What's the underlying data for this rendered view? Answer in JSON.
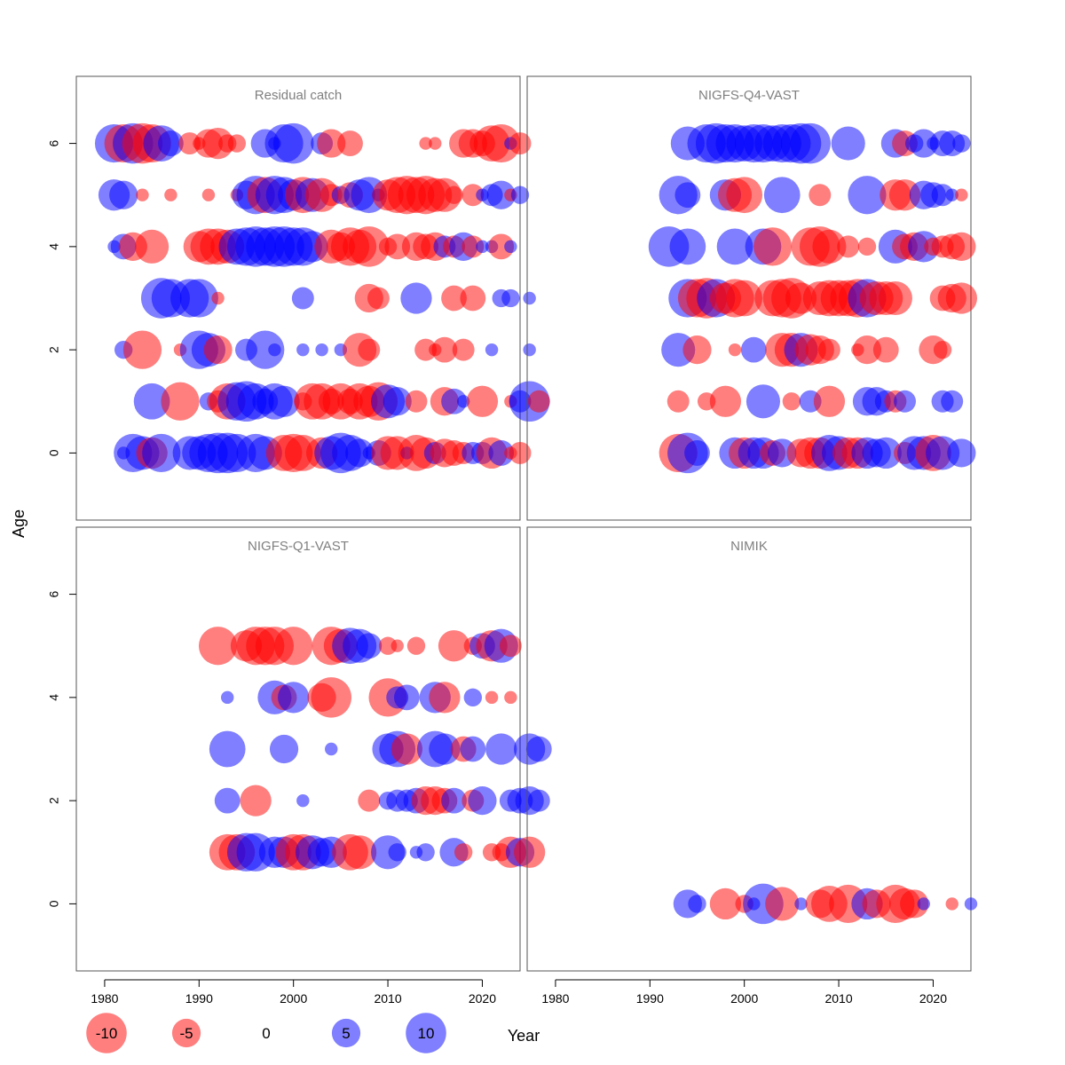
{
  "colors": {
    "negative": "#ff0000",
    "positive": "#0000ff",
    "panel_title": "#808080",
    "axis": "#000000"
  },
  "chart_data": {
    "type": "scatter",
    "subtype": "bubble",
    "ylabel": "Age",
    "xlabel": "Year",
    "xlim": [
      1977,
      2024
    ],
    "ylim": [
      -1.3,
      7.3
    ],
    "xticks": [
      1980,
      1990,
      2000,
      2010,
      2020
    ],
    "yticks": [
      0,
      2,
      4,
      6
    ],
    "legend": {
      "placement": "bottom",
      "entries": [
        {
          "value": -10,
          "label": "-10"
        },
        {
          "value": -5,
          "label": "-5"
        },
        {
          "value": 0,
          "label": "0"
        },
        {
          "value": 5,
          "label": "5"
        },
        {
          "value": 10,
          "label": "10"
        }
      ]
    },
    "panels": [
      {
        "title": "Residual catch",
        "ages": [
          {
            "age": 6,
            "first_year": 1981,
            "residuals": [
              9,
              -9,
              10,
              -10,
              -9,
              8,
              4,
              0,
              -3,
              -1,
              -5,
              -6,
              -2,
              -2,
              0,
              0,
              5,
              1,
              9,
              10,
              0,
              0,
              3,
              -5,
              0,
              -4,
              0,
              0,
              0,
              0,
              0,
              0,
              0,
              -1,
              -1,
              0,
              0,
              -5,
              -5,
              -4,
              -8,
              -9,
              1,
              -3
            ]
          },
          {
            "age": 5,
            "first_year": 1981,
            "residuals": [
              6,
              5,
              0,
              -1,
              0,
              0,
              -1,
              0,
              0,
              0,
              -1,
              0,
              0,
              -1,
              5,
              9,
              -8,
              9,
              8,
              6,
              -8,
              7,
              -7,
              -3,
              2,
              -4,
              6,
              8,
              1,
              -6,
              -8,
              -9,
              -8,
              -9,
              -7,
              -7,
              -2,
              0,
              -3,
              1,
              3,
              5,
              -1,
              2
            ]
          },
          {
            "age": 4,
            "first_year": 1981,
            "residuals": [
              1,
              4,
              -5,
              0,
              -7,
              0,
              0,
              0,
              0,
              -6,
              -8,
              -8,
              -7,
              8,
              9,
              10,
              9,
              10,
              10,
              9,
              9,
              6,
              0,
              -7,
              -5,
              -9,
              -7,
              -10,
              0,
              -2,
              -4,
              0,
              -5,
              -4,
              -5,
              3,
              -3,
              5,
              -3,
              1,
              1,
              -4,
              1
            ]
          },
          {
            "age": 3,
            "first_year": 1982,
            "residuals": [
              0,
              0,
              0,
              0,
              10,
              9,
              0,
              9,
              9,
              0,
              -1,
              0,
              0,
              0,
              0,
              0,
              0,
              0,
              0,
              3,
              0,
              0,
              0,
              0,
              0,
              0,
              -5,
              -3,
              0,
              0,
              0,
              6,
              0,
              0,
              0,
              -4,
              0,
              -4,
              0,
              0,
              2,
              2,
              0,
              1
            ]
          },
          {
            "age": 2,
            "first_year": 1982,
            "residuals": [
              2,
              0,
              -9,
              0,
              0,
              0,
              -1,
              0,
              9,
              7,
              -5,
              0,
              0,
              3,
              0,
              9,
              1,
              0,
              0,
              1,
              0,
              1,
              0,
              1,
              0,
              -7,
              -3,
              0,
              0,
              0,
              0,
              0,
              -3,
              -1,
              -4,
              0,
              -3,
              0,
              0,
              1,
              0,
              0,
              0,
              1
            ]
          },
          {
            "age": 1,
            "first_year": 1983,
            "residuals": [
              0,
              0,
              8,
              0,
              0,
              -9,
              0,
              0,
              2,
              -3,
              -8,
              9,
              10,
              8,
              4,
              8,
              6,
              0,
              -2,
              -8,
              -8,
              -4,
              -8,
              -4,
              -8,
              -6,
              -9,
              7,
              5,
              0,
              -3,
              0,
              0,
              -5,
              4,
              1,
              0,
              -6,
              0,
              0,
              -1,
              3,
              10,
              -3
            ]
          },
          {
            "age": 0,
            "first_year": 1981,
            "residuals": [
              0,
              1,
              9,
              7,
              -6,
              9,
              0,
              0,
              7,
              7,
              9,
              10,
              10,
              9,
              0,
              9,
              7,
              0,
              -8,
              -9,
              -8,
              0,
              -6,
              7,
              10,
              8,
              5,
              1,
              4,
              -7,
              -7,
              1,
              -8,
              -6,
              3,
              -5,
              -4,
              -3,
              3,
              3,
              -6,
              4,
              -1,
              -3
            ]
          }
        ]
      },
      {
        "title": "NIGFS-Q4-VAST",
        "ages": [
          {
            "age": 6,
            "first_year": 1992,
            "residuals": [
              0,
              0,
              7,
              0,
              9,
              10,
              9,
              9,
              8,
              9,
              9,
              8,
              9,
              9,
              10,
              10,
              0,
              0,
              0,
              7,
              0,
              0,
              0,
              0,
              5,
              -4,
              2,
              5,
              1,
              4,
              4,
              2
            ]
          },
          {
            "age": 5,
            "first_year": 1992,
            "residuals": [
              0,
              9,
              4,
              0,
              0,
              0,
              6,
              -7,
              -8,
              0,
              0,
              0,
              8,
              0,
              0,
              0,
              -3,
              0,
              0,
              0,
              0,
              9,
              0,
              0,
              -6,
              -6,
              0,
              5,
              4,
              3,
              1,
              -1
            ]
          },
          {
            "age": 4,
            "first_year": 1992,
            "residuals": [
              10,
              0,
              8,
              0,
              0,
              0,
              0,
              8,
              0,
              0,
              8,
              -9,
              0,
              0,
              0,
              -9,
              -10,
              -7,
              0,
              -3,
              0,
              -2,
              0,
              0,
              7,
              -4,
              -5,
              6,
              -2,
              -3,
              -4,
              -5
            ]
          },
          {
            "age": 3,
            "first_year": 1992,
            "residuals": [
              0,
              0,
              9,
              -9,
              -10,
              9,
              -6,
              -9,
              -8,
              0,
              0,
              -8,
              -9,
              -10,
              -6,
              0,
              -7,
              -8,
              -8,
              -8,
              -9,
              9,
              -7,
              -7,
              -7,
              0,
              0,
              0,
              0,
              -4,
              -5,
              -6
            ]
          },
          {
            "age": 2,
            "first_year": 1992,
            "residuals": [
              0,
              7,
              0,
              -5,
              0,
              0,
              0,
              -1,
              0,
              4,
              0,
              0,
              -7,
              -7,
              7,
              -6,
              -5,
              -3,
              0,
              0,
              -1,
              -5,
              0,
              -4,
              0,
              0,
              0,
              0,
              -5,
              -2
            ]
          },
          {
            "age": 1,
            "first_year": 1993,
            "residuals": [
              -3,
              0,
              0,
              -2,
              0,
              -6,
              0,
              0,
              0,
              7,
              0,
              0,
              -2,
              0,
              3,
              0,
              -6,
              0,
              0,
              0,
              5,
              5,
              3,
              -3,
              3,
              0,
              0,
              0,
              3,
              3
            ]
          },
          {
            "age": 0,
            "first_year": 1993,
            "residuals": [
              -9,
              10,
              4,
              0,
              0,
              0,
              6,
              -6,
              6,
              6,
              -4,
              5,
              0,
              -5,
              -6,
              -6,
              8,
              7,
              -6,
              -6,
              6,
              5,
              6,
              0,
              -3,
              7,
              7,
              -8,
              7,
              0,
              5
            ]
          }
        ]
      },
      {
        "title": "NIGFS-Q1-VAST",
        "ages": [
          {
            "age": 5,
            "first_year": 1992,
            "residuals": [
              -9,
              0,
              0,
              -6,
              -9,
              -9,
              -9,
              0,
              -9,
              0,
              0,
              0,
              -9,
              -7,
              8,
              7,
              4,
              0,
              -2,
              -1,
              0,
              -2,
              0,
              0,
              0,
              -6,
              0,
              -2,
              4,
              -6,
              7,
              -3
            ]
          },
          {
            "age": 4,
            "first_year": 1993,
            "residuals": [
              1,
              0,
              0,
              0,
              0,
              7,
              -4,
              6,
              0,
              0,
              -5,
              -10,
              0,
              0,
              0,
              0,
              0,
              -9,
              3,
              4,
              0,
              0,
              6,
              -6,
              0,
              0,
              2,
              0,
              -1,
              0,
              -1
            ]
          },
          {
            "age": 3,
            "first_year": 1993,
            "residuals": [
              8,
              0,
              0,
              0,
              0,
              0,
              5,
              0,
              0,
              0,
              0,
              1,
              0,
              0,
              0,
              0,
              0,
              6,
              8,
              -6,
              0,
              0,
              8,
              6,
              0,
              -4,
              4,
              0,
              0,
              6,
              0,
              0,
              6,
              4
            ]
          },
          {
            "age": 2,
            "first_year": 1993,
            "residuals": [
              4,
              0,
              0,
              -6,
              0,
              0,
              0,
              0,
              1,
              0,
              0,
              0,
              0,
              0,
              0,
              -3,
              0,
              2,
              3,
              3,
              4,
              -5,
              -5,
              -4,
              4,
              0,
              -3,
              5,
              0,
              0,
              3,
              4,
              5,
              3
            ]
          },
          {
            "age": 1,
            "first_year": 1993,
            "residuals": [
              -8,
              -8,
              9,
              9,
              0,
              6,
              6,
              -8,
              -8,
              7,
              5,
              6,
              0,
              -8,
              -7,
              0,
              0,
              7,
              2,
              0,
              1,
              2,
              0,
              0,
              5,
              -2,
              0,
              0,
              -2,
              -2,
              -6,
              5,
              -6
            ]
          }
        ]
      },
      {
        "title": "NIMIK",
        "ages": [
          {
            "age": 0,
            "first_year": 1994,
            "residuals": [
              5,
              2,
              0,
              0,
              -6,
              0,
              -2,
              1,
              10,
              0,
              -7,
              0,
              1,
              0,
              -5,
              -8,
              0,
              -9,
              0,
              6,
              -5,
              0,
              -9,
              -6,
              -5,
              1,
              0,
              0,
              -1,
              0,
              1
            ]
          }
        ]
      }
    ]
  }
}
